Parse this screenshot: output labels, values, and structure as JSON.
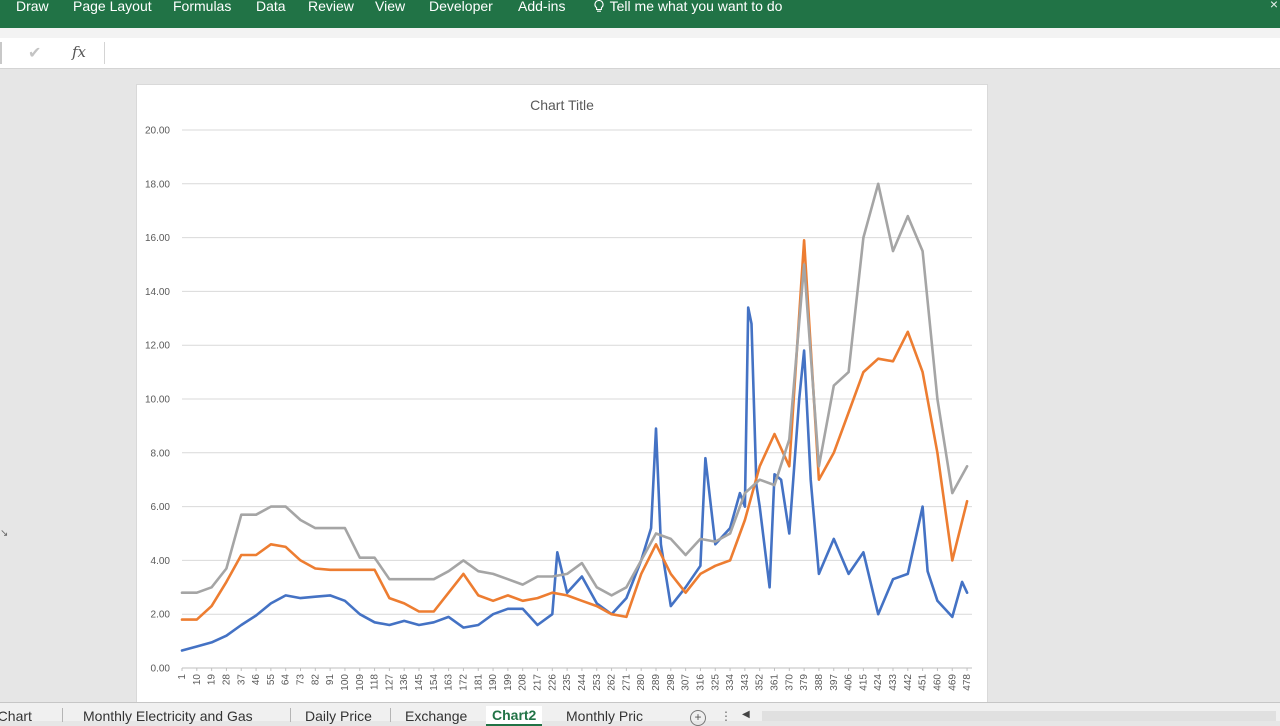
{
  "ribbon": {
    "tabs": [
      "Draw",
      "Page Layout",
      "Formulas",
      "Data",
      "Review",
      "View",
      "Developer",
      "Add-ins"
    ],
    "tell_me": "Tell me what you want to do",
    "close_glyph": "×"
  },
  "formula_bar": {
    "check": "✔",
    "fx": "fx",
    "value": ""
  },
  "sheet_tabs": [
    {
      "label": "a Chart",
      "active": false
    },
    {
      "label": "Monthly Electricity and Gas",
      "active": false
    },
    {
      "label": "Daily Price",
      "active": false
    },
    {
      "label": "Exchange",
      "active": false
    },
    {
      "label": "Chart2",
      "active": true
    },
    {
      "label": "Monthly Pric",
      "active": false
    }
  ],
  "chart_data": {
    "type": "line",
    "title": "Chart Title",
    "xlabel": "",
    "ylabel": "",
    "ylim": [
      0,
      20
    ],
    "y_ticks": [
      "0.00",
      "2.00",
      "4.00",
      "6.00",
      "8.00",
      "10.00",
      "12.00",
      "14.00",
      "16.00",
      "18.00",
      "20.00"
    ],
    "x_range": [
      1,
      481
    ],
    "x_ticks": [
      "1",
      "10",
      "19",
      "28",
      "37",
      "46",
      "55",
      "64",
      "73",
      "82",
      "91",
      "100",
      "109",
      "118",
      "127",
      "136",
      "145",
      "154",
      "163",
      "172",
      "181",
      "190",
      "199",
      "208",
      "217",
      "226",
      "235",
      "244",
      "253",
      "262",
      "271",
      "280",
      "289",
      "298",
      "307",
      "316",
      "325",
      "334",
      "343",
      "352",
      "361",
      "370",
      "379",
      "388",
      "397",
      "406",
      "415",
      "424",
      "433",
      "442",
      "451",
      "460",
      "469",
      "478"
    ],
    "grid": true,
    "legend": "none",
    "series": [
      {
        "color": "#4472c4",
        "x": [
          1,
          10,
          19,
          28,
          37,
          46,
          55,
          64,
          73,
          82,
          91,
          100,
          109,
          118,
          127,
          136,
          145,
          154,
          163,
          172,
          181,
          190,
          199,
          208,
          217,
          226,
          229,
          235,
          244,
          253,
          262,
          271,
          280,
          286,
          289,
          292,
          298,
          307,
          316,
          319,
          325,
          334,
          340,
          343,
          345,
          347,
          350,
          352,
          358,
          361,
          365,
          370,
          376,
          379,
          383,
          388,
          397,
          406,
          415,
          424,
          433,
          442,
          451,
          454,
          460,
          469,
          475,
          478
        ],
        "y": [
          0.65,
          0.8,
          0.95,
          1.2,
          1.6,
          1.95,
          2.4,
          2.7,
          2.6,
          2.65,
          2.7,
          2.5,
          2.0,
          1.7,
          1.6,
          1.75,
          1.6,
          1.7,
          1.9,
          1.5,
          1.6,
          2.0,
          2.2,
          2.2,
          1.6,
          2.0,
          4.3,
          2.8,
          3.4,
          2.4,
          2.0,
          2.6,
          4.0,
          5.2,
          8.9,
          4.6,
          2.3,
          3.0,
          3.8,
          7.8,
          4.6,
          5.2,
          6.5,
          6.0,
          13.4,
          12.8,
          6.8,
          6.0,
          3.0,
          7.2,
          7.0,
          5.0,
          10.0,
          11.8,
          7.0,
          3.5,
          4.8,
          3.5,
          4.3,
          2.0,
          3.3,
          3.5,
          6.0,
          3.6,
          2.5,
          1.9,
          3.2,
          2.8
        ]
      },
      {
        "color": "#ed7d31",
        "x": [
          1,
          10,
          19,
          28,
          37,
          46,
          55,
          64,
          73,
          82,
          91,
          100,
          109,
          118,
          127,
          136,
          145,
          154,
          163,
          172,
          181,
          190,
          199,
          208,
          217,
          226,
          235,
          244,
          253,
          262,
          271,
          280,
          289,
          298,
          307,
          316,
          325,
          334,
          343,
          352,
          361,
          370,
          379,
          388,
          397,
          406,
          415,
          424,
          433,
          442,
          451,
          460,
          469,
          478
        ],
        "y": [
          1.8,
          1.8,
          2.3,
          3.2,
          4.2,
          4.2,
          4.6,
          4.5,
          4.0,
          3.7,
          3.65,
          3.65,
          3.65,
          3.65,
          2.6,
          2.4,
          2.1,
          2.1,
          2.8,
          3.5,
          2.7,
          2.5,
          2.7,
          2.5,
          2.6,
          2.8,
          2.7,
          2.5,
          2.3,
          2.0,
          1.9,
          3.5,
          4.6,
          3.5,
          2.8,
          3.5,
          3.8,
          4.0,
          5.5,
          7.5,
          8.7,
          7.5,
          15.9,
          7.0,
          8.0,
          9.5,
          11.0,
          11.5,
          11.4,
          12.5,
          11.0,
          8.0,
          4.0,
          6.2
        ]
      },
      {
        "color": "#a5a5a5",
        "x": [
          1,
          10,
          19,
          28,
          37,
          46,
          55,
          64,
          73,
          82,
          91,
          100,
          109,
          118,
          127,
          136,
          145,
          154,
          163,
          172,
          181,
          190,
          199,
          208,
          217,
          226,
          235,
          244,
          253,
          262,
          271,
          280,
          289,
          298,
          307,
          316,
          325,
          334,
          343,
          352,
          361,
          370,
          379,
          388,
          397,
          406,
          415,
          424,
          433,
          442,
          451,
          460,
          469,
          478
        ],
        "y": [
          2.8,
          2.8,
          3.0,
          3.7,
          5.7,
          5.7,
          6.0,
          6.0,
          5.5,
          5.2,
          5.2,
          5.2,
          4.1,
          4.1,
          3.3,
          3.3,
          3.3,
          3.3,
          3.6,
          4.0,
          3.6,
          3.5,
          3.3,
          3.1,
          3.4,
          3.4,
          3.5,
          3.9,
          3.0,
          2.7,
          3.0,
          4.0,
          5.0,
          4.8,
          4.2,
          4.8,
          4.7,
          5.0,
          6.5,
          7.0,
          6.8,
          8.5,
          15.0,
          7.5,
          10.5,
          11.0,
          16.0,
          18.0,
          15.5,
          16.8,
          15.5,
          10.0,
          6.5,
          7.5
        ]
      }
    ]
  }
}
